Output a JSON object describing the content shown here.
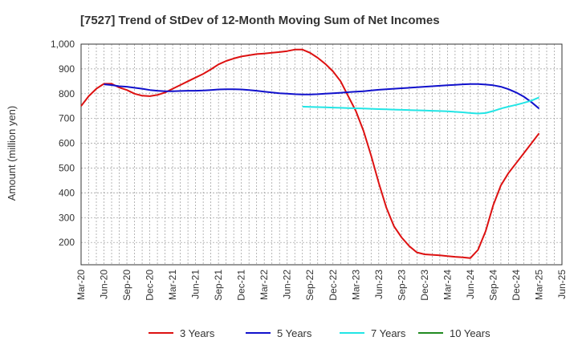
{
  "chart_data": {
    "type": "line",
    "title": "[7527]  Trend of StDev of 12-Month Moving Sum of Net Incomes",
    "xlabel": "",
    "ylabel": "Amount (million yen)",
    "ylim": [
      110,
      1000
    ],
    "yticks": [
      200,
      300,
      400,
      500,
      600,
      700,
      800,
      900,
      1000
    ],
    "ytick_labels": [
      "200",
      "300",
      "400",
      "500",
      "600",
      "700",
      "800",
      "900",
      "1,000"
    ],
    "xticks": [
      "Mar-20",
      "Jun-20",
      "Sep-20",
      "Dec-20",
      "Mar-21",
      "Jun-21",
      "Sep-21",
      "Dec-21",
      "Mar-22",
      "Jun-22",
      "Sep-22",
      "Dec-22",
      "Mar-23",
      "Jun-23",
      "Sep-23",
      "Dec-23",
      "Mar-24",
      "Jun-24",
      "Sep-24",
      "Dec-24",
      "Mar-25",
      "Jun-25"
    ],
    "grid": true,
    "legend_position": "bottom",
    "series": [
      {
        "name": "3 Years",
        "color": "#dd1111",
        "x": [
          "Mar-20",
          "Apr-20",
          "May-20",
          "Jun-20",
          "Jul-20",
          "Aug-20",
          "Sep-20",
          "Oct-20",
          "Nov-20",
          "Dec-20",
          "Jan-21",
          "Feb-21",
          "Mar-21",
          "Apr-21",
          "May-21",
          "Jun-21",
          "Jul-21",
          "Aug-21",
          "Sep-21",
          "Oct-21",
          "Nov-21",
          "Dec-21",
          "Jan-22",
          "Feb-22",
          "Mar-22",
          "Apr-22",
          "May-22",
          "Jun-22",
          "Jul-22",
          "Aug-22",
          "Sep-22",
          "Oct-22",
          "Nov-22",
          "Dec-22",
          "Jan-23",
          "Feb-23",
          "Mar-23",
          "Apr-23",
          "May-23",
          "Jun-23",
          "Jul-23",
          "Aug-23",
          "Sep-23",
          "Oct-23",
          "Nov-23",
          "Dec-23",
          "Jan-24",
          "Feb-24",
          "Mar-24",
          "Apr-24",
          "May-24",
          "Jun-24",
          "Jul-24",
          "Aug-24",
          "Sep-24",
          "Oct-24",
          "Nov-24",
          "Dec-24",
          "Jan-25",
          "Feb-25",
          "Mar-25"
        ],
        "values": [
          750,
          790,
          820,
          840,
          840,
          825,
          815,
          800,
          792,
          790,
          795,
          805,
          820,
          835,
          850,
          865,
          880,
          898,
          918,
          932,
          942,
          950,
          955,
          960,
          962,
          965,
          968,
          972,
          978,
          978,
          965,
          945,
          920,
          890,
          850,
          790,
          730,
          650,
          550,
          440,
          340,
          265,
          220,
          185,
          160,
          152,
          150,
          148,
          145,
          142,
          140,
          137,
          170,
          245,
          350,
          430,
          480,
          520,
          560,
          600,
          640
        ]
      },
      {
        "name": "5 Years",
        "color": "#1111cc",
        "x": [
          "Jun-20",
          "Jul-20",
          "Aug-20",
          "Sep-20",
          "Oct-20",
          "Nov-20",
          "Dec-20",
          "Jan-21",
          "Feb-21",
          "Mar-21",
          "Apr-21",
          "May-21",
          "Jun-21",
          "Jul-21",
          "Aug-21",
          "Sep-21",
          "Oct-21",
          "Nov-21",
          "Dec-21",
          "Jan-22",
          "Feb-22",
          "Mar-22",
          "Apr-22",
          "May-22",
          "Jun-22",
          "Jul-22",
          "Aug-22",
          "Sep-22",
          "Oct-22",
          "Nov-22",
          "Dec-22",
          "Jan-23",
          "Feb-23",
          "Mar-23",
          "Apr-23",
          "May-23",
          "Jun-23",
          "Jul-23",
          "Aug-23",
          "Sep-23",
          "Oct-23",
          "Nov-23",
          "Dec-23",
          "Jan-24",
          "Feb-24",
          "Mar-24",
          "Apr-24",
          "May-24",
          "Jun-24",
          "Jul-24",
          "Aug-24",
          "Sep-24",
          "Oct-24",
          "Nov-24",
          "Dec-24",
          "Jan-25",
          "Feb-25",
          "Mar-25"
        ],
        "values": [
          838,
          835,
          830,
          828,
          824,
          820,
          815,
          812,
          810,
          810,
          811,
          812,
          812,
          813,
          815,
          817,
          818,
          818,
          817,
          815,
          812,
          808,
          805,
          802,
          800,
          798,
          797,
          797,
          798,
          800,
          802,
          804,
          806,
          808,
          810,
          813,
          816,
          818,
          820,
          822,
          824,
          826,
          828,
          830,
          832,
          834,
          836,
          838,
          839,
          839,
          837,
          834,
          828,
          818,
          805,
          788,
          766,
          740
        ]
      },
      {
        "name": "7 Years",
        "color": "#22e5e5",
        "x": [
          "Aug-22",
          "Sep-22",
          "Oct-22",
          "Nov-22",
          "Dec-22",
          "Jan-23",
          "Feb-23",
          "Mar-23",
          "Apr-23",
          "May-23",
          "Jun-23",
          "Jul-23",
          "Aug-23",
          "Sep-23",
          "Oct-23",
          "Nov-23",
          "Dec-23",
          "Jan-24",
          "Feb-24",
          "Mar-24",
          "Apr-24",
          "May-24",
          "Jun-24",
          "Jul-24",
          "Aug-24",
          "Sep-24",
          "Oct-24",
          "Nov-24",
          "Dec-24",
          "Jan-25",
          "Feb-25",
          "Mar-25"
        ],
        "values": [
          748,
          747,
          746,
          745,
          744,
          743,
          742,
          741,
          740,
          739,
          738,
          737,
          736,
          735,
          734,
          733,
          732,
          731,
          730,
          729,
          727,
          725,
          722,
          720,
          722,
          730,
          740,
          748,
          755,
          763,
          772,
          785
        ]
      },
      {
        "name": "10 Years",
        "color": "#228b22",
        "x": [],
        "values": []
      }
    ]
  }
}
